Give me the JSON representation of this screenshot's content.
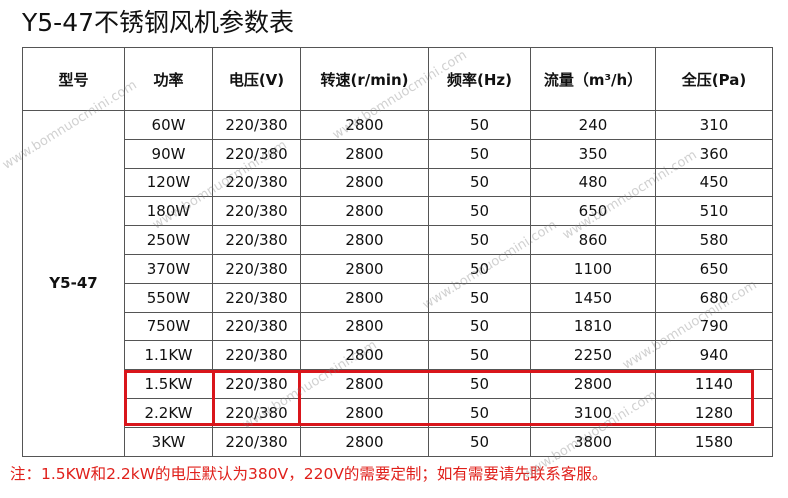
{
  "title": "Y5-47不锈钢风机参数表",
  "table": {
    "headers": [
      "型号",
      "功率",
      "电压(V)",
      "转速(r/min)",
      "频率(Hz)",
      "流量（m³/h）",
      "全压(Pa)"
    ],
    "model": "Y5-47",
    "rows": [
      [
        "60W",
        "220/380",
        "2800",
        "50",
        "240",
        "310"
      ],
      [
        "90W",
        "220/380",
        "2800",
        "50",
        "350",
        "360"
      ],
      [
        "120W",
        "220/380",
        "2800",
        "50",
        "480",
        "450"
      ],
      [
        "180W",
        "220/380",
        "2800",
        "50",
        "650",
        "510"
      ],
      [
        "250W",
        "220/380",
        "2800",
        "50",
        "860",
        "580"
      ],
      [
        "370W",
        "220/380",
        "2800",
        "50",
        "1100",
        "650"
      ],
      [
        "550W",
        "220/380",
        "2800",
        "50",
        "1450",
        "680"
      ],
      [
        "750W",
        "220/380",
        "2800",
        "50",
        "1810",
        "790"
      ],
      [
        "1.1KW",
        "220/380",
        "2800",
        "50",
        "2250",
        "940"
      ],
      [
        "1.5KW",
        "220/380",
        "2800",
        "50",
        "2800",
        "1140"
      ],
      [
        "2.2KW",
        "220/380",
        "2800",
        "50",
        "3100",
        "1280"
      ],
      [
        "3KW",
        "220/380",
        "2800",
        "50",
        "3800",
        "1580"
      ]
    ]
  },
  "note": "注：1.5KW和2.2kW的电压默认为380V，220V的需要定制；如有需要请先联系客服。",
  "watermark": "www.bomnuocmini.com"
}
